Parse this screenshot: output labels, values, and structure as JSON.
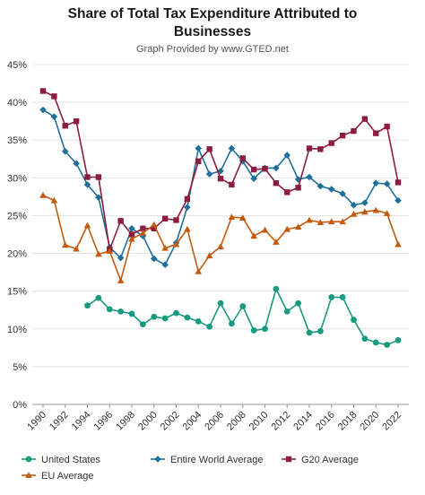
{
  "chart_data": {
    "type": "line",
    "title_line1": "Share of Total Tax Expenditure Attributed to",
    "title_line2": "Businesses",
    "subtitle": "Graph Provided by www.GTED.net",
    "xlabel": "",
    "ylabel": "",
    "ylim": [
      0,
      45
    ],
    "yticks": [
      "0%",
      "5%",
      "10%",
      "15%",
      "20%",
      "25%",
      "30%",
      "35%",
      "40%",
      "45%"
    ],
    "x": [
      1990,
      1991,
      1992,
      1993,
      1994,
      1995,
      1996,
      1997,
      1998,
      1999,
      2000,
      2001,
      2002,
      2003,
      2004,
      2005,
      2006,
      2007,
      2008,
      2009,
      2010,
      2011,
      2012,
      2013,
      2014,
      2015,
      2016,
      2017,
      2018,
      2019,
      2020,
      2021,
      2022
    ],
    "xticks": [
      1990,
      1992,
      1994,
      1996,
      1998,
      2000,
      2002,
      2004,
      2006,
      2008,
      2010,
      2012,
      2014,
      2016,
      2018,
      2020,
      2022
    ],
    "grid": true,
    "legend_position": "bottom",
    "series": [
      {
        "name": "United States",
        "color": "#1a9a80",
        "marker": "circle",
        "values": [
          null,
          null,
          null,
          null,
          13.1,
          14.1,
          12.6,
          12.3,
          12.0,
          10.6,
          11.6,
          11.4,
          12.1,
          11.5,
          11.0,
          10.3,
          13.4,
          10.7,
          13.0,
          9.8,
          10.0,
          15.3,
          12.3,
          13.4,
          9.5,
          9.7,
          14.2,
          14.2,
          11.2,
          8.7,
          8.2,
          7.9,
          8.5
        ]
      },
      {
        "name": "Entire World Average",
        "color": "#1f6f9a",
        "marker": "diamond",
        "values": [
          39.0,
          38.1,
          33.5,
          31.9,
          29.1,
          27.4,
          20.8,
          19.4,
          23.3,
          22.3,
          19.3,
          18.5,
          21.4,
          26.1,
          33.9,
          30.5,
          30.9,
          33.9,
          32.2,
          29.9,
          31.3,
          31.3,
          33.0,
          29.8,
          30.1,
          28.9,
          28.5,
          27.9,
          26.4,
          26.7,
          29.3,
          29.2,
          27.0
        ]
      },
      {
        "name": "G20 Average",
        "color": "#8c1d40",
        "marker": "square",
        "values": [
          41.5,
          40.8,
          36.9,
          37.5,
          30.1,
          30.1,
          20.5,
          24.3,
          22.5,
          23.3,
          23.3,
          24.6,
          24.4,
          27.2,
          32.2,
          33.8,
          29.9,
          29.1,
          32.6,
          31.1,
          31.2,
          29.3,
          28.1,
          28.7,
          33.9,
          33.8,
          34.6,
          35.6,
          36.2,
          37.8,
          35.9,
          36.8,
          29.4
        ]
      },
      {
        "name": "EU Average",
        "color": "#c35a0d",
        "marker": "triangle",
        "values": [
          27.7,
          27.0,
          21.1,
          20.6,
          23.7,
          19.9,
          20.3,
          16.4,
          21.9,
          22.7,
          23.8,
          20.7,
          21.2,
          23.2,
          17.6,
          19.7,
          20.9,
          24.8,
          24.7,
          22.3,
          23.1,
          21.5,
          23.2,
          23.5,
          24.4,
          24.1,
          24.2,
          24.2,
          25.2,
          25.5,
          25.7,
          25.3,
          21.2
        ]
      }
    ]
  }
}
